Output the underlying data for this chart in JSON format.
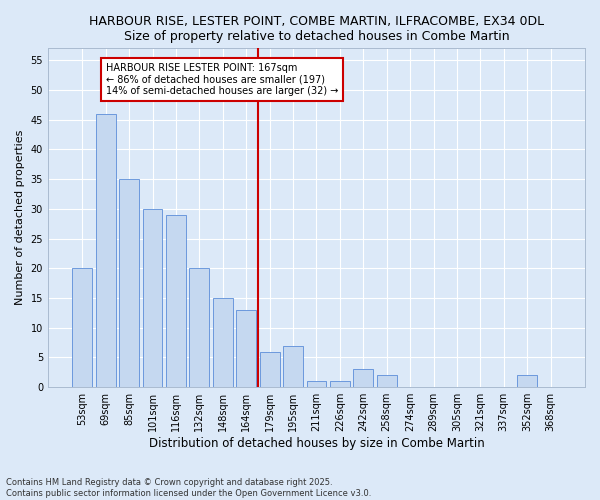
{
  "title1": "HARBOUR RISE, LESTER POINT, COMBE MARTIN, ILFRACOMBE, EX34 0DL",
  "title2": "Size of property relative to detached houses in Combe Martin",
  "xlabel": "Distribution of detached houses by size in Combe Martin",
  "ylabel": "Number of detached properties",
  "categories": [
    "53sqm",
    "69sqm",
    "85sqm",
    "101sqm",
    "116sqm",
    "132sqm",
    "148sqm",
    "164sqm",
    "179sqm",
    "195sqm",
    "211sqm",
    "226sqm",
    "242sqm",
    "258sqm",
    "274sqm",
    "289sqm",
    "305sqm",
    "321sqm",
    "337sqm",
    "352sqm",
    "368sqm"
  ],
  "values": [
    20,
    46,
    35,
    30,
    29,
    20,
    15,
    13,
    6,
    7,
    1,
    1,
    3,
    2,
    0,
    0,
    0,
    0,
    0,
    2,
    0
  ],
  "bar_color": "#c5d8f0",
  "bar_edge_color": "#5b8dd9",
  "reference_line_x": 7.5,
  "annotation_text": "HARBOUR RISE LESTER POINT: 167sqm\n← 86% of detached houses are smaller (197)\n14% of semi-detached houses are larger (32) →",
  "annotation_box_color": "#ffffff",
  "annotation_box_edge": "#cc0000",
  "ref_line_color": "#cc0000",
  "ylim": [
    0,
    57
  ],
  "yticks": [
    0,
    5,
    10,
    15,
    20,
    25,
    30,
    35,
    40,
    45,
    50,
    55
  ],
  "footer": "Contains HM Land Registry data © Crown copyright and database right 2025.\nContains public sector information licensed under the Open Government Licence v3.0.",
  "bg_color": "#dce9f8",
  "plot_bg_color": "#dce9f8",
  "grid_color": "#ffffff",
  "title_fontsize": 9,
  "tick_fontsize": 7,
  "label_fontsize": 8.5,
  "ylabel_fontsize": 8,
  "annotation_fontsize": 7
}
